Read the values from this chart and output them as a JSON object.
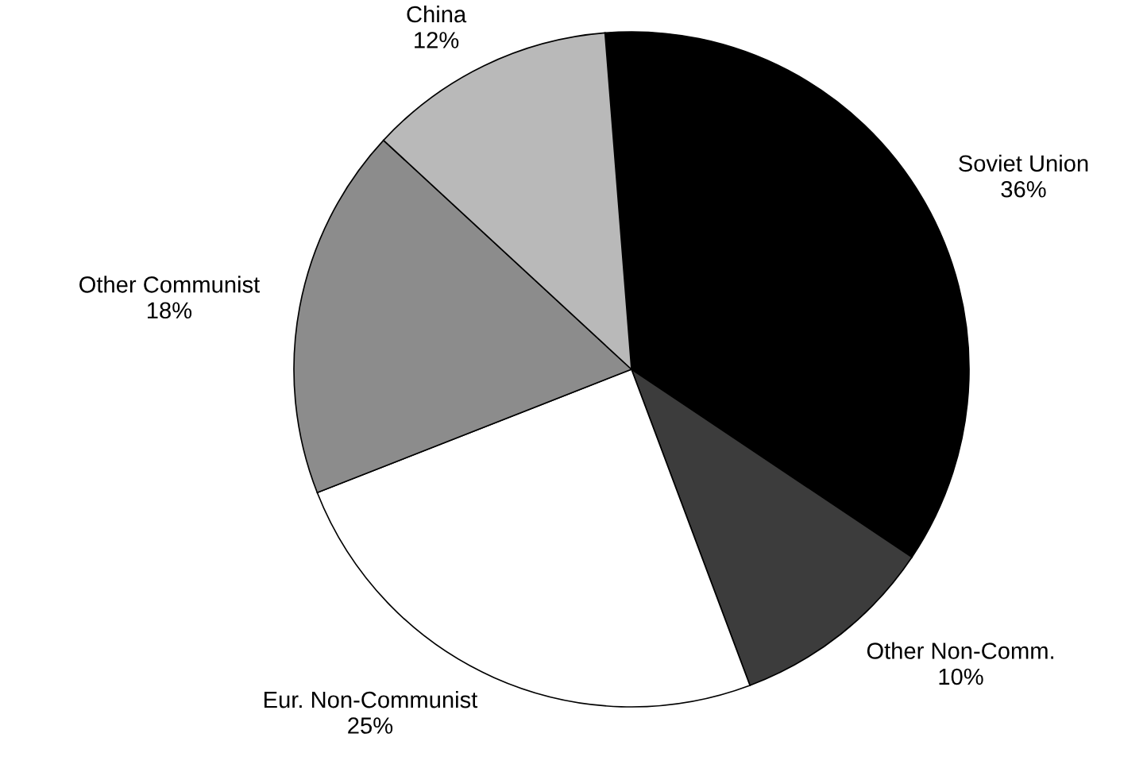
{
  "chart_data": {
    "type": "pie",
    "categories": [
      "Soviet Union",
      "Other Non-Comm.",
      "Eur. Non-Communist",
      "Other Communist",
      "China"
    ],
    "values": [
      36,
      10,
      25,
      18,
      12
    ],
    "colors": [
      "#000000",
      "#3c3c3c",
      "#ffffff",
      "#8c8c8c",
      "#b9b9b9"
    ],
    "value_labels": [
      "36%",
      "10%",
      "25%",
      "18%",
      "12%"
    ]
  }
}
